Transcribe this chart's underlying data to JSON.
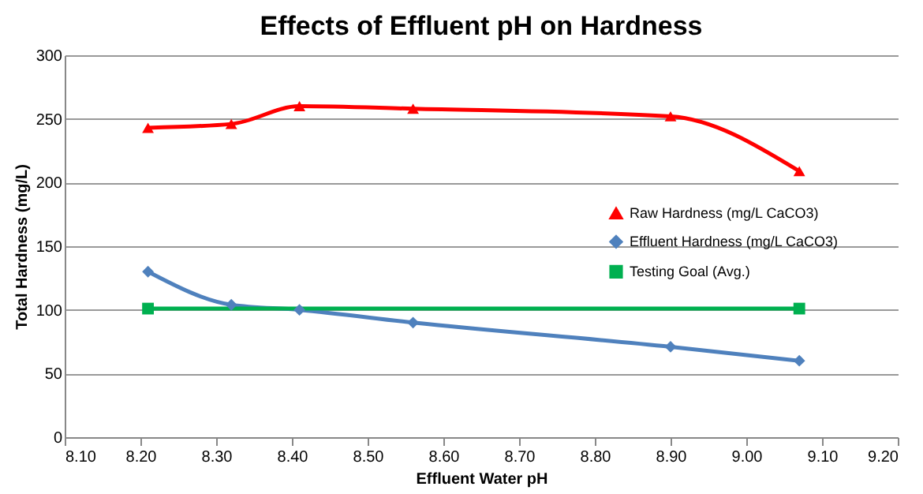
{
  "chart_data": {
    "type": "line",
    "title": "Effects of Effluent pH on Hardness",
    "xlabel": "Effluent Water pH",
    "ylabel": "Total Hardness  (mg/L)",
    "xlim": [
      8.1,
      9.2
    ],
    "xticks": [
      {
        "value": 8.1,
        "label": "8.10"
      },
      {
        "value": 8.2,
        "label": "8.20"
      },
      {
        "value": 8.3,
        "label": "8.30"
      },
      {
        "value": 8.4,
        "label": "8.40"
      },
      {
        "value": 8.5,
        "label": "8.50"
      },
      {
        "value": 8.6,
        "label": "8.60"
      },
      {
        "value": 8.7,
        "label": "8.70"
      },
      {
        "value": 8.8,
        "label": "8.80"
      },
      {
        "value": 8.9,
        "label": "8.90"
      },
      {
        "value": 9.0,
        "label": "9.00"
      },
      {
        "value": 9.1,
        "label": "9.10"
      },
      {
        "value": 9.2,
        "label": "9.20"
      }
    ],
    "ylim": [
      0,
      300
    ],
    "yticks": [
      0,
      50,
      100,
      150,
      200,
      250,
      300
    ],
    "grid": "y",
    "legend": "right",
    "series": [
      {
        "name": "Raw Hardness (mg/L CaCO3)",
        "color": "#ff0000",
        "marker": "triangle",
        "x": [
          8.21,
          8.32,
          8.41,
          8.56,
          8.9,
          9.07
        ],
        "values": [
          243,
          246,
          260,
          258,
          252,
          209
        ]
      },
      {
        "name": "Effluent Hardness (mg/L CaCO3)",
        "color": "#4f81bd",
        "marker": "diamond",
        "x": [
          8.21,
          8.32,
          8.41,
          8.56,
          8.9,
          9.07
        ],
        "values": [
          130,
          104,
          100,
          90,
          71,
          60
        ]
      },
      {
        "name": "Testing Goal (Avg.)",
        "color": "#00b050",
        "marker": "square",
        "x": [
          8.21,
          9.07
        ],
        "values": [
          101,
          101
        ]
      }
    ]
  }
}
